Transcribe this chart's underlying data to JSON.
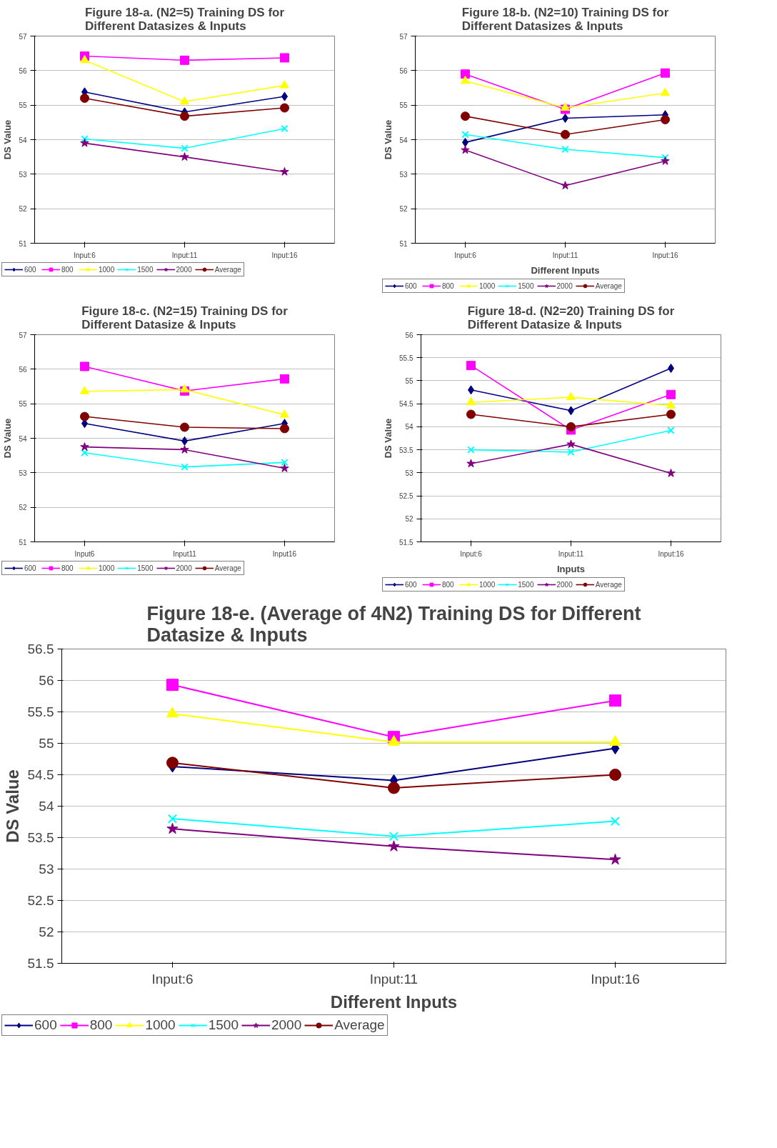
{
  "chart_data": [
    {
      "type": "line",
      "title": "Figure 18-a. (N2=5) Training DS for Different Datasizes & Inputs",
      "ylabel": "DS Value",
      "categories": [
        "Input:6",
        "Input:11",
        "Input:16"
      ],
      "ylim": [
        51,
        57
      ],
      "yticks": [
        51,
        52,
        53,
        54,
        55,
        56,
        57
      ],
      "grid": "y",
      "legend": "bottom",
      "series": [
        {
          "name": "600",
          "color": "#000080",
          "marker": "diamond",
          "values": [
            55.38,
            54.8,
            55.25
          ]
        },
        {
          "name": "800",
          "color": "#ff00ff",
          "marker": "square",
          "values": [
            56.42,
            56.3,
            56.37
          ]
        },
        {
          "name": "1000",
          "color": "#ffff00",
          "marker": "triangle",
          "values": [
            56.3,
            55.1,
            55.57
          ]
        },
        {
          "name": "1500",
          "color": "#00ffff",
          "marker": "cross",
          "values": [
            54.02,
            53.75,
            54.32
          ]
        },
        {
          "name": "2000",
          "color": "#800080",
          "marker": "star",
          "values": [
            53.9,
            53.5,
            53.07
          ]
        },
        {
          "name": "Average",
          "color": "#800000",
          "marker": "circle",
          "values": [
            55.2,
            54.68,
            54.92
          ]
        }
      ]
    },
    {
      "type": "line",
      "title": "Figure 18-b. (N2=10) Training DS for Different Datasizes & Inputs",
      "ylabel": "DS Value",
      "xlabel": "Different Inputs",
      "categories": [
        "Input:6",
        "Input:11",
        "Input:16"
      ],
      "ylim": [
        51,
        57
      ],
      "yticks": [
        51,
        52,
        53,
        54,
        55,
        56,
        57
      ],
      "grid": "y",
      "legend": "bottom",
      "series": [
        {
          "name": "600",
          "color": "#000080",
          "marker": "diamond",
          "values": [
            53.92,
            54.62,
            54.72
          ]
        },
        {
          "name": "800",
          "color": "#ff00ff",
          "marker": "square",
          "values": [
            55.9,
            54.88,
            55.93
          ]
        },
        {
          "name": "1000",
          "color": "#ffff00",
          "marker": "triangle",
          "values": [
            55.7,
            54.92,
            55.35
          ]
        },
        {
          "name": "1500",
          "color": "#00ffff",
          "marker": "cross",
          "values": [
            54.15,
            53.72,
            53.48
          ]
        },
        {
          "name": "2000",
          "color": "#800080",
          "marker": "star",
          "values": [
            53.7,
            52.67,
            53.38
          ]
        },
        {
          "name": "Average",
          "color": "#800000",
          "marker": "circle",
          "values": [
            54.68,
            54.15,
            54.58
          ]
        }
      ]
    },
    {
      "type": "line",
      "title": "Figure 18-c. (N2=15) Training DS for Different Datasize & Inputs",
      "ylabel": "DS Value",
      "categories": [
        "Input6",
        "Input11",
        "Input16"
      ],
      "ylim": [
        51,
        57
      ],
      "yticks": [
        51,
        52,
        53,
        54,
        55,
        56,
        57
      ],
      "grid": "y",
      "legend": "bottom",
      "series": [
        {
          "name": "600",
          "color": "#000080",
          "marker": "diamond",
          "values": [
            54.43,
            53.92,
            54.43
          ]
        },
        {
          "name": "800",
          "color": "#ff00ff",
          "marker": "square",
          "values": [
            56.08,
            55.37,
            55.72
          ]
        },
        {
          "name": "1000",
          "color": "#ffff00",
          "marker": "triangle",
          "values": [
            55.36,
            55.41,
            54.68
          ]
        },
        {
          "name": "1500",
          "color": "#00ffff",
          "marker": "cross",
          "values": [
            53.58,
            53.17,
            53.3
          ]
        },
        {
          "name": "2000",
          "color": "#800080",
          "marker": "star",
          "values": [
            53.75,
            53.67,
            53.13
          ]
        },
        {
          "name": "Average",
          "color": "#800000",
          "marker": "circle",
          "values": [
            54.63,
            54.32,
            54.28
          ]
        }
      ]
    },
    {
      "type": "line",
      "title": "Figure 18-d. (N2=20) Training DS for Different Datasize & Inputs",
      "ylabel": "DS Value",
      "xlabel": "Inputs",
      "categories": [
        "Input:6",
        "Input:11",
        "Input:16"
      ],
      "ylim": [
        51.5,
        56
      ],
      "yticks": [
        51.5,
        52,
        52.5,
        53,
        53.5,
        54,
        54.5,
        55,
        55.5,
        56
      ],
      "grid": "y",
      "legend": "bottom",
      "series": [
        {
          "name": "600",
          "color": "#000080",
          "marker": "diamond",
          "values": [
            54.8,
            54.35,
            55.27
          ]
        },
        {
          "name": "800",
          "color": "#ff00ff",
          "marker": "square",
          "values": [
            55.33,
            53.93,
            54.7
          ]
        },
        {
          "name": "1000",
          "color": "#ffff00",
          "marker": "triangle",
          "values": [
            54.53,
            54.64,
            54.46
          ]
        },
        {
          "name": "1500",
          "color": "#00ffff",
          "marker": "cross",
          "values": [
            53.5,
            53.45,
            53.92
          ]
        },
        {
          "name": "2000",
          "color": "#800080",
          "marker": "star",
          "values": [
            53.2,
            53.62,
            52.99
          ]
        },
        {
          "name": "Average",
          "color": "#800000",
          "marker": "circle",
          "values": [
            54.27,
            54.0,
            54.27
          ]
        }
      ]
    },
    {
      "type": "line",
      "title": "Figure 18-e. (Average of 4N2) Training DS for Different Datasize & Inputs",
      "ylabel": "DS Value",
      "xlabel": "Different Inputs",
      "categories": [
        "Input:6",
        "Input:11",
        "Input:16"
      ],
      "ylim": [
        51.5,
        56.5
      ],
      "yticks": [
        51.5,
        52,
        52.5,
        53,
        53.5,
        54,
        54.5,
        55,
        55.5,
        56,
        56.5
      ],
      "grid": "y",
      "legend": "bottom",
      "series": [
        {
          "name": "600",
          "color": "#000080",
          "marker": "diamond",
          "values": [
            54.63,
            54.41,
            54.92
          ]
        },
        {
          "name": "800",
          "color": "#ff00ff",
          "marker": "square",
          "values": [
            55.93,
            55.1,
            55.68
          ]
        },
        {
          "name": "1000",
          "color": "#ffff00",
          "marker": "triangle",
          "values": [
            55.47,
            55.02,
            55.02
          ]
        },
        {
          "name": "1500",
          "color": "#00ffff",
          "marker": "cross",
          "values": [
            53.8,
            53.52,
            53.76
          ]
        },
        {
          "name": "2000",
          "color": "#800080",
          "marker": "star",
          "values": [
            53.64,
            53.36,
            53.15
          ]
        },
        {
          "name": "Average",
          "color": "#800000",
          "marker": "circle",
          "values": [
            54.69,
            54.29,
            54.5
          ]
        }
      ]
    }
  ]
}
